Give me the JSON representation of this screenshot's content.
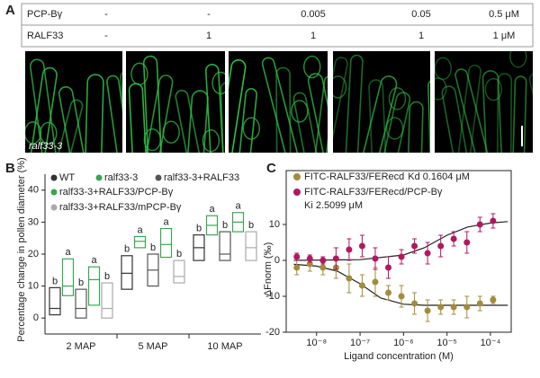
{
  "panel_labels": [
    "A",
    "B",
    "C"
  ],
  "panel_a": {
    "table": {
      "rows": [
        [
          "PCP-Bγ",
          "-",
          "-",
          "0.005",
          "0.05",
          "0.5 μM"
        ],
        [
          "RALF33",
          "-",
          "1",
          "1",
          "1",
          "1  μM"
        ]
      ]
    },
    "image_label": "ralf33-3"
  },
  "chart_data": [
    {
      "type": "box",
      "ylabel": "Percentage change in pollen diameter (%)",
      "categories": [
        "2 MAP",
        "5 MAP",
        "10 MAP"
      ],
      "ylim": [
        -5,
        45
      ],
      "yticks": [
        0,
        10,
        20,
        30,
        40
      ],
      "series": [
        {
          "name": "WT",
          "color": "#333333",
          "low": [
            1,
            9,
            18
          ],
          "median": [
            3,
            14,
            22
          ],
          "high": [
            9.5,
            19.5,
            26
          ],
          "letters": [
            "b",
            "b",
            "b"
          ]
        },
        {
          "name": "ralf33-3",
          "color": "#3aa655",
          "low": [
            7,
            22,
            26
          ],
          "median": [
            10,
            24,
            29
          ],
          "high": [
            18.5,
            25.5,
            32
          ],
          "letters": [
            "a",
            "a",
            "a"
          ]
        },
        {
          "name": "ralf33-3+RALF33",
          "color": "#555555",
          "low": [
            0,
            10,
            18
          ],
          "median": [
            3,
            15,
            20
          ],
          "high": [
            9,
            20,
            27
          ],
          "letters": [
            "b",
            "b",
            "b"
          ]
        },
        {
          "name": "ralf33-3+RALF33/PCP-Bγ",
          "color": "#3aa655",
          "low": [
            4,
            19,
            27
          ],
          "median": [
            12,
            23,
            30
          ],
          "high": [
            16,
            28,
            33
          ],
          "letters": [
            "a",
            "a",
            "a"
          ]
        },
        {
          "name": "ralf33-3+RALF33/mPCP-Bγ",
          "color": "#aaaaaa",
          "low": [
            0,
            11,
            18
          ],
          "median": [
            3,
            13,
            22
          ],
          "high": [
            11,
            18,
            27
          ],
          "letters": [
            "b",
            "b",
            "b"
          ]
        }
      ]
    },
    {
      "type": "scatter",
      "xlabel": "Ligand concentration (M)",
      "ylabel": "ΔFnorm (‰)",
      "xscale": "log",
      "xlim": [
        2e-09,
        0.0003
      ],
      "xticks": [
        {
          "value": 1e-08,
          "label": "10⁻⁸"
        },
        {
          "value": 1e-07,
          "label": "10⁻⁷"
        },
        {
          "value": 1e-06,
          "label": "10⁻⁶"
        },
        {
          "value": 1e-05,
          "label": "10⁻⁵"
        },
        {
          "value": 0.0001,
          "label": "10⁻⁴"
        }
      ],
      "ylim": [
        -20,
        15
      ],
      "yticks": [
        -20,
        -10,
        0,
        10
      ],
      "x": [
        3.5e-09,
        7e-09,
        1.4e-08,
        2.8e-08,
        5.6e-08,
        1.12e-07,
        2.24e-07,
        4.48e-07,
        8.96e-07,
        1.79e-06,
        3.58e-06,
        7.17e-06,
        1.43e-05,
        2.87e-05,
        5.73e-05,
        0.000115
      ],
      "series": [
        {
          "name": "FITC-RALF33/FERecd",
          "constant": "Kd 0.1604 μM",
          "color": "#a08c3c",
          "values": [
            -2,
            -1,
            -2,
            -2,
            -5,
            -7,
            -6,
            -9,
            -10,
            -12,
            -14,
            -13,
            -13,
            -13,
            -12,
            -11
          ],
          "errors": [
            2,
            2,
            2,
            3,
            4,
            3,
            4,
            2,
            3,
            3,
            3,
            2,
            2,
            3,
            2,
            1
          ],
          "fit": {
            "x": [
              3e-09,
              1e-08,
              3e-08,
              1e-07,
              3e-07,
              1e-06,
              3e-06,
              1e-05,
              0.00025
            ],
            "values": [
              -1.1,
              -1.6,
              -3,
              -6.5,
              -10.5,
              -12.2,
              -12.5,
              -12.5,
              -12.5
            ]
          }
        },
        {
          "name": "FITC-RALF33/FERecd/PCP-Bγ",
          "constant": "Ki 2.5099 μM",
          "color": "#b0195f",
          "values": [
            1,
            0.5,
            0,
            0.5,
            3,
            4,
            0.5,
            -2,
            1,
            4,
            2,
            4,
            6,
            5,
            10,
            11
          ],
          "errors": [
            1,
            1,
            1,
            3,
            3,
            3,
            3,
            3,
            2,
            2,
            3,
            3,
            2,
            3,
            2,
            2
          ],
          "fit": {
            "x": [
              3e-09,
              1e-07,
              1e-06,
              3e-06,
              1e-05,
              3e-05,
              0.0001,
              0.00025
            ],
            "values": [
              0,
              0.2,
              1.5,
              3.5,
              7,
              9.3,
              10.4,
              10.8
            ]
          }
        }
      ]
    }
  ]
}
